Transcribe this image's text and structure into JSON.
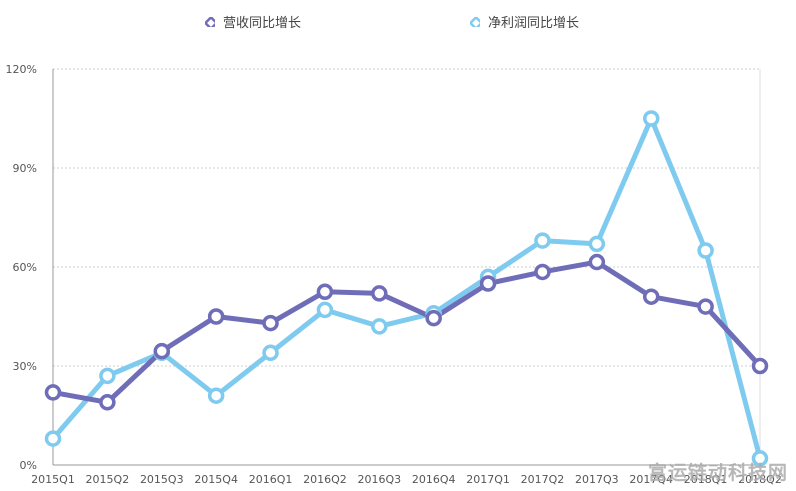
{
  "chart_data": {
    "type": "line",
    "categories": [
      "2015Q1",
      "2015Q2",
      "2015Q3",
      "2015Q4",
      "2016Q1",
      "2016Q2",
      "2016Q3",
      "2016Q4",
      "2017Q1",
      "2017Q2",
      "2017Q3",
      "2017Q4",
      "2018Q1",
      "2018Q2"
    ],
    "series": [
      {
        "name": "营收同比增长",
        "color": "#6f6db8",
        "values": [
          22,
          19,
          34.5,
          45,
          43,
          52.5,
          52,
          44.5,
          55,
          58.5,
          61.5,
          51,
          48,
          30
        ]
      },
      {
        "name": "净利润同比增长",
        "color": "#7fcbef",
        "values": [
          8,
          27,
          34,
          21,
          34,
          47,
          42,
          46,
          57,
          68,
          67,
          105,
          65,
          2
        ]
      }
    ],
    "y_ticks": [
      "0%",
      "30%",
      "60%",
      "90%",
      "120%"
    ],
    "ylim": [
      0,
      120
    ],
    "grid": true,
    "legend_position": "top-center"
  },
  "watermark": "富运链动科技网"
}
